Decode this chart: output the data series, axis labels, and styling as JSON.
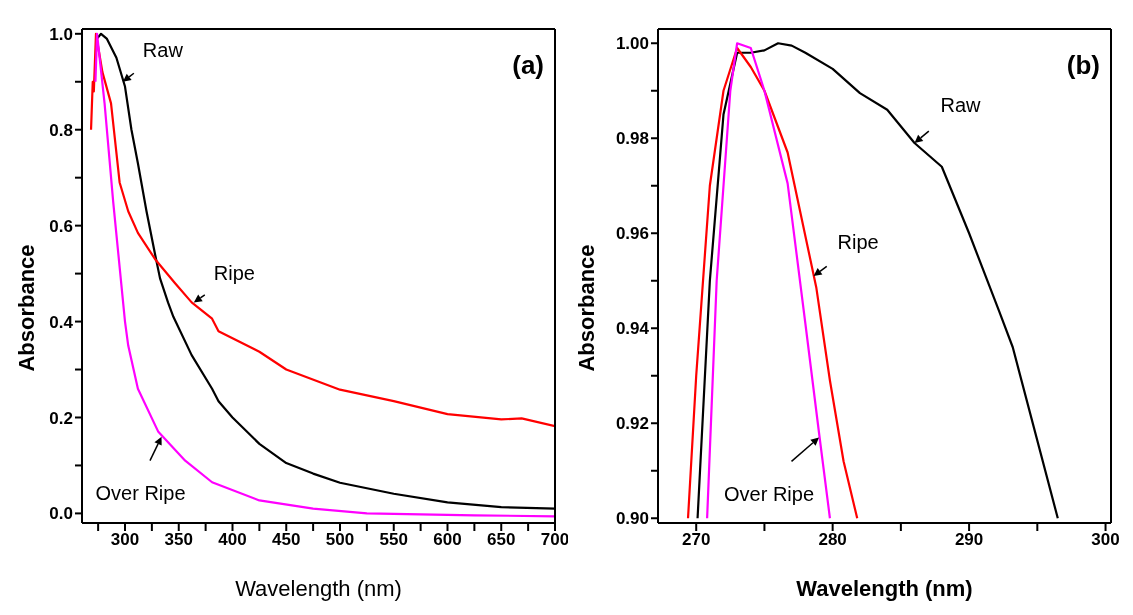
{
  "chart_data": [
    {
      "type": "line",
      "xlabel": "Wavelength (nm)",
      "ylabel": "Absorbance",
      "xlim": [
        260,
        700
      ],
      "ylim": [
        -0.02,
        1.01
      ],
      "xticks": [
        {
          "value": 275,
          "label": null
        },
        300,
        {
          "value": 325,
          "label": null
        },
        350,
        {
          "value": 375,
          "label": null
        },
        400,
        {
          "value": 425,
          "label": null
        },
        450,
        {
          "value": 475,
          "label": null
        },
        500,
        {
          "value": 525,
          "label": null
        },
        550,
        {
          "value": 575,
          "label": null
        },
        600,
        {
          "value": 625,
          "label": null
        },
        650,
        {
          "value": 675,
          "label": null
        },
        700
      ],
      "yticks": [
        {
          "value": 0,
          "label": "0.0"
        },
        {
          "value": 0.1,
          "label": null
        },
        0.2,
        {
          "value": 0.3,
          "label": null
        },
        0.4,
        {
          "value": 0.5,
          "label": null
        },
        0.6,
        {
          "value": 0.7,
          "label": null
        },
        0.8,
        {
          "value": 0.9,
          "label": null
        },
        {
          "value": 1,
          "label": "1.0"
        }
      ],
      "grid": false,
      "marker": "none",
      "line_style": "solid",
      "series": [
        {
          "color": "#000000",
          "x": [
            274,
            277.7,
            283,
            292,
            300,
            306,
            312,
            320,
            328,
            332.6,
            340,
            345,
            362,
            381,
            387,
            400,
            425,
            450,
            475,
            500,
            550,
            600,
            650,
            700
          ],
          "values": [
            0.99,
            1.0,
            0.99,
            0.95,
            0.89,
            0.8,
            0.73,
            0.63,
            0.54,
            0.49,
            0.44,
            0.41,
            0.33,
            0.26,
            0.234,
            0.2,
            0.145,
            0.105,
            0.083,
            0.064,
            0.041,
            0.023,
            0.013,
            0.01
          ]
        },
        {
          "color": "#ff0000",
          "x": [
            268.4,
            270,
            271,
            273,
            279,
            287,
            295,
            303,
            312,
            328,
            346.6,
            362,
            381,
            387,
            425,
            450,
            500,
            550,
            600,
            650,
            669,
            700
          ],
          "values": [
            0.8,
            0.9,
            0.88,
            1.0,
            0.92,
            0.855,
            0.69,
            0.63,
            0.585,
            0.53,
            0.48,
            0.44,
            0.406,
            0.38,
            0.337,
            0.3,
            0.258,
            0.234,
            0.207,
            0.196,
            0.198,
            0.182
          ]
        },
        {
          "color": "#ff00ff",
          "x": [
            272.5,
            274,
            281,
            289,
            300,
            303,
            312,
            331,
            356,
            381,
            425,
            475,
            525,
            625,
            700
          ],
          "values": [
            0.9,
            1.0,
            0.855,
            0.65,
            0.4,
            0.35,
            0.26,
            0.17,
            0.11,
            0.065,
            0.027,
            0.01,
            0.0,
            -0.004,
            -0.006
          ]
        }
      ],
      "annotations": [
        {
          "text": "Raw",
          "x": 298,
          "y": 0.9
        },
        {
          "text": "Ripe",
          "x": 364,
          "y": 0.44
        },
        {
          "text": "Over Ripe",
          "x": 334,
          "y": 0.16
        },
        "(a)"
      ]
    },
    {
      "type": "line",
      "xlabel": "Wavelength (nm)",
      "ylabel": "Absorbance",
      "xlim": [
        267.2,
        300.4
      ],
      "ylim": [
        0.899,
        1.003
      ],
      "xticks": [
        270,
        {
          "value": 275,
          "label": null
        },
        280,
        {
          "value": 285,
          "label": null
        },
        290,
        {
          "value": 295,
          "label": null
        },
        300
      ],
      "yticks": [
        {
          "value": 0.9,
          "label": "0.90"
        },
        {
          "value": 0.91,
          "label": null
        },
        0.92,
        {
          "value": 0.93,
          "label": null
        },
        0.94,
        {
          "value": 0.95,
          "label": null
        },
        0.96,
        {
          "value": 0.97,
          "label": null
        },
        0.98,
        {
          "value": 0.99,
          "label": null
        },
        {
          "value": 1,
          "label": "1.00"
        }
      ],
      "grid": false,
      "marker": "none",
      "line_style": "solid",
      "series": [
        {
          "color": "#000000",
          "x": [
            270.1,
            271,
            272,
            273,
            274,
            275,
            276,
            277,
            278,
            280,
            282,
            284,
            286,
            288,
            290,
            292.2,
            293.2,
            296.5
          ],
          "values": [
            0.9,
            0.95,
            0.985,
            0.998,
            0.998,
            0.9985,
            1.0,
            0.9995,
            0.998,
            0.9946,
            0.9895,
            0.986,
            0.979,
            0.974,
            0.96,
            0.9436,
            0.936,
            0.9
          ]
        },
        {
          "color": "#ff0000",
          "x": [
            269.4,
            270,
            271,
            272,
            273,
            274,
            275,
            276.7,
            278.8,
            279.8,
            280.8,
            281.8
          ],
          "values": [
            0.9,
            0.93,
            0.97,
            0.99,
            0.999,
            0.995,
            0.99,
            0.977,
            0.9486,
            0.929,
            0.912,
            0.9
          ]
        },
        {
          "color": "#ff00ff",
          "x": [
            270.8,
            271.5,
            272.5,
            273,
            274,
            275,
            276.7,
            278,
            279,
            279.8
          ],
          "values": [
            0.9,
            0.95,
            0.99,
            1.0,
            0.999,
            0.99,
            0.9705,
            0.941,
            0.918,
            0.9
          ]
        }
      ],
      "annotations": [
        {
          "text": "Raw",
          "x": 286,
          "y": 0.979
        },
        {
          "text": "Ripe",
          "x": 278.6,
          "y": 0.951
        },
        {
          "text": "Over Ripe",
          "x": 279,
          "y": 0.917
        },
        "(b)"
      ]
    }
  ]
}
